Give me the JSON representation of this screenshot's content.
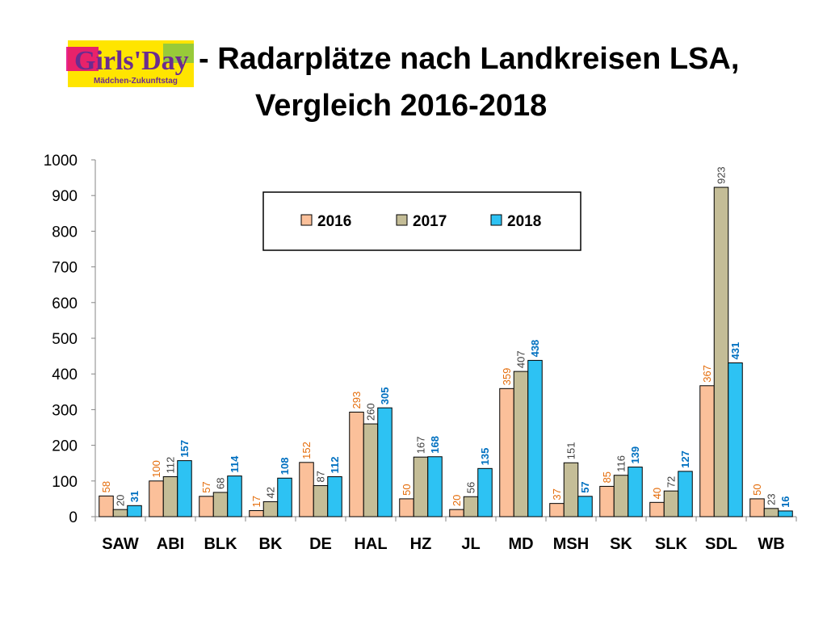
{
  "logo": {
    "text": "Girls'Day",
    "subtext": "Mädchen-Zukunftstag"
  },
  "title": {
    "line1": "- Radarplätze nach Landkreisen LSA,",
    "line2": "Vergleich 2016-2018"
  },
  "colors": {
    "s2016": "#FBC09A",
    "s2017": "#C4BD97",
    "s2018": "#2DC2F3",
    "label2016": "#E46C0A",
    "label2017": "#404040",
    "label2018": "#0070C0"
  },
  "chart_data": {
    "type": "bar",
    "title": "- Radarplätze nach Landkreisen LSA, Vergleich 2016-2018",
    "categories": [
      "SAW",
      "ABI",
      "BLK",
      "BK",
      "DE",
      "HAL",
      "HZ",
      "JL",
      "MD",
      "MSH",
      "SK",
      "SLK",
      "SDL",
      "WB"
    ],
    "series": [
      {
        "name": "2016",
        "values": [
          58,
          100,
          57,
          17,
          152,
          293,
          50,
          20,
          359,
          37,
          85,
          40,
          367,
          50
        ]
      },
      {
        "name": "2017",
        "values": [
          20,
          112,
          68,
          42,
          87,
          260,
          167,
          56,
          407,
          151,
          116,
          72,
          923,
          23
        ]
      },
      {
        "name": "2018",
        "values": [
          31,
          157,
          114,
          108,
          112,
          305,
          168,
          135,
          438,
          57,
          139,
          127,
          431,
          16
        ]
      }
    ],
    "ylim": [
      0,
      1000
    ],
    "yticks": [
      0,
      100,
      200,
      300,
      400,
      500,
      600,
      700,
      800,
      900,
      1000
    ],
    "xlabel": "",
    "ylabel": "",
    "grid": false,
    "legend_position": "top-center",
    "data_labels": true
  }
}
